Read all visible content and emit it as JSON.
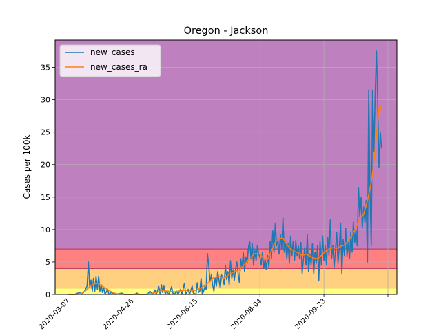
{
  "chart_data": {
    "type": "line",
    "title": "Oregon - Jackson",
    "xlabel": "",
    "ylabel": "Cases per 100k",
    "xlim": [
      "2020-02-26",
      "2020-11-19"
    ],
    "ylim": [
      0,
      39.2
    ],
    "grid": true,
    "legend": "top-left",
    "x_ticks": [
      "2020-03-07",
      "2020-04-26",
      "2020-06-15",
      "2020-08-04",
      "2020-09-23",
      ""
    ],
    "y_ticks": [
      "0",
      "5",
      "10",
      "15",
      "20",
      "25",
      "30",
      "35"
    ],
    "y_tick_values": [
      0,
      5,
      10,
      15,
      20,
      25,
      30,
      35
    ],
    "bands": [
      {
        "from": 0,
        "to": 1,
        "color": "#ffff80"
      },
      {
        "from": 1,
        "to": 4,
        "color": "#ffd080"
      },
      {
        "from": 4,
        "to": 7,
        "color": "#ff8080"
      },
      {
        "from": 7,
        "to": 39.2,
        "color": "#bf80bf"
      }
    ],
    "band_edge_color": "#c04060",
    "series": [
      {
        "name": "new_cases",
        "color": "#1f77b4",
        "points": [
          [
            "2020-03-07",
            0
          ],
          [
            "2020-03-12",
            0
          ],
          [
            "2020-03-16",
            0.3
          ],
          [
            "2020-03-18",
            0
          ],
          [
            "2020-03-20",
            0.5
          ],
          [
            "2020-03-22",
            1.3
          ],
          [
            "2020-03-23",
            5
          ],
          [
            "2020-03-24",
            1
          ],
          [
            "2020-03-25",
            2.2
          ],
          [
            "2020-03-26",
            0.5
          ],
          [
            "2020-03-27",
            2.5
          ],
          [
            "2020-03-28",
            0.5
          ],
          [
            "2020-03-29",
            2.8
          ],
          [
            "2020-03-30",
            0.8
          ],
          [
            "2020-03-31",
            2.8
          ],
          [
            "2020-04-01",
            0.5
          ],
          [
            "2020-04-02",
            1.5
          ],
          [
            "2020-04-03",
            0.3
          ],
          [
            "2020-04-04",
            1
          ],
          [
            "2020-04-05",
            0
          ],
          [
            "2020-04-07",
            0.8
          ],
          [
            "2020-04-08",
            0
          ],
          [
            "2020-04-10",
            0.3
          ],
          [
            "2020-04-13",
            0
          ],
          [
            "2020-04-18",
            0.2
          ],
          [
            "2020-04-20",
            0
          ],
          [
            "2020-04-28",
            0
          ],
          [
            "2020-04-30",
            0.2
          ],
          [
            "2020-05-01",
            0
          ],
          [
            "2020-05-08",
            0
          ],
          [
            "2020-05-10",
            0.5
          ],
          [
            "2020-05-12",
            0
          ],
          [
            "2020-05-14",
            0.7
          ],
          [
            "2020-05-15",
            0
          ],
          [
            "2020-05-17",
            1.2
          ],
          [
            "2020-05-18",
            0
          ],
          [
            "2020-05-19",
            1.5
          ],
          [
            "2020-05-20",
            0.3
          ],
          [
            "2020-05-21",
            1.3
          ],
          [
            "2020-05-22",
            0
          ],
          [
            "2020-05-23",
            0.5
          ],
          [
            "2020-05-25",
            0
          ],
          [
            "2020-05-27",
            1.2
          ],
          [
            "2020-05-28",
            0.2
          ],
          [
            "2020-05-29",
            0
          ],
          [
            "2020-05-31",
            0.5
          ],
          [
            "2020-06-01",
            0
          ],
          [
            "2020-06-03",
            0.8
          ],
          [
            "2020-06-04",
            0
          ],
          [
            "2020-06-06",
            1.7
          ],
          [
            "2020-06-07",
            0
          ],
          [
            "2020-06-09",
            0.8
          ],
          [
            "2020-06-10",
            0
          ],
          [
            "2020-06-12",
            1.3
          ],
          [
            "2020-06-13",
            0.2
          ],
          [
            "2020-06-15",
            0
          ],
          [
            "2020-06-16",
            1.8
          ],
          [
            "2020-06-17",
            0.3
          ],
          [
            "2020-06-18",
            0.5
          ],
          [
            "2020-06-19",
            2.5
          ],
          [
            "2020-06-20",
            0
          ],
          [
            "2020-06-21",
            0.5
          ],
          [
            "2020-06-22",
            1.2
          ],
          [
            "2020-06-23",
            0.8
          ],
          [
            "2020-06-24",
            6.3
          ],
          [
            "2020-06-25",
            4.5
          ],
          [
            "2020-06-26",
            2
          ],
          [
            "2020-06-27",
            3
          ],
          [
            "2020-06-28",
            1.5
          ],
          [
            "2020-06-29",
            0.5
          ],
          [
            "2020-06-30",
            2.5
          ],
          [
            "2020-07-01",
            1.3
          ],
          [
            "2020-07-02",
            3.5
          ],
          [
            "2020-07-03",
            2.2
          ],
          [
            "2020-07-04",
            1
          ],
          [
            "2020-07-05",
            3
          ],
          [
            "2020-07-06",
            2.5
          ],
          [
            "2020-07-07",
            1.5
          ],
          [
            "2020-07-08",
            4.5
          ],
          [
            "2020-07-09",
            2.3
          ],
          [
            "2020-07-10",
            3.5
          ],
          [
            "2020-07-11",
            1.5
          ],
          [
            "2020-07-12",
            5.2
          ],
          [
            "2020-07-13",
            2.5
          ],
          [
            "2020-07-14",
            3.8
          ],
          [
            "2020-07-15",
            2.2
          ],
          [
            "2020-07-16",
            4
          ],
          [
            "2020-07-17",
            5
          ],
          [
            "2020-07-18",
            3.2
          ],
          [
            "2020-07-19",
            1.8
          ],
          [
            "2020-07-20",
            5.5
          ],
          [
            "2020-07-21",
            4.2
          ],
          [
            "2020-07-22",
            6.5
          ],
          [
            "2020-07-23",
            3.5
          ],
          [
            "2020-07-24",
            5.8
          ],
          [
            "2020-07-25",
            4.8
          ],
          [
            "2020-07-26",
            7.2
          ],
          [
            "2020-07-27",
            8.2
          ],
          [
            "2020-07-28",
            5.5
          ],
          [
            "2020-07-29",
            7.8
          ],
          [
            "2020-07-30",
            4.5
          ],
          [
            "2020-07-31",
            6.8
          ],
          [
            "2020-08-01",
            5.2
          ],
          [
            "2020-08-02",
            7.5
          ],
          [
            "2020-08-03",
            6.2
          ],
          [
            "2020-08-04",
            5.8
          ],
          [
            "2020-08-05",
            4.5
          ],
          [
            "2020-08-06",
            6.5
          ],
          [
            "2020-08-07",
            4
          ],
          [
            "2020-08-08",
            5.5
          ],
          [
            "2020-08-09",
            3.8
          ],
          [
            "2020-08-10",
            6
          ],
          [
            "2020-08-11",
            4.2
          ],
          [
            "2020-08-12",
            8.2
          ],
          [
            "2020-08-13",
            5.5
          ],
          [
            "2020-08-14",
            9.8
          ],
          [
            "2020-08-15",
            6.5
          ],
          [
            "2020-08-16",
            11
          ],
          [
            "2020-08-17",
            7.5
          ],
          [
            "2020-08-18",
            8.5
          ],
          [
            "2020-08-19",
            6.2
          ],
          [
            "2020-08-20",
            9.2
          ],
          [
            "2020-08-21",
            7
          ],
          [
            "2020-08-22",
            11.8
          ],
          [
            "2020-08-23",
            6.5
          ],
          [
            "2020-08-24",
            8.2
          ],
          [
            "2020-08-25",
            5.5
          ],
          [
            "2020-08-26",
            7.8
          ],
          [
            "2020-08-27",
            4.8
          ],
          [
            "2020-08-28",
            9
          ],
          [
            "2020-08-29",
            6
          ],
          [
            "2020-08-30",
            8.2
          ],
          [
            "2020-08-31",
            5.2
          ],
          [
            "2020-09-01",
            8.3
          ],
          [
            "2020-09-02",
            6
          ],
          [
            "2020-09-03",
            7.5
          ],
          [
            "2020-09-04",
            5.5
          ],
          [
            "2020-09-05",
            8
          ],
          [
            "2020-09-06",
            3.2
          ],
          [
            "2020-09-07",
            5.5
          ],
          [
            "2020-09-08",
            7.2
          ],
          [
            "2020-09-09",
            4.5
          ],
          [
            "2020-09-10",
            9.2
          ],
          [
            "2020-09-11",
            3.5
          ],
          [
            "2020-09-12",
            6.2
          ],
          [
            "2020-09-13",
            4.5
          ],
          [
            "2020-09-14",
            7.8
          ],
          [
            "2020-09-15",
            3.2
          ],
          [
            "2020-09-16",
            6.5
          ],
          [
            "2020-09-17",
            4.8
          ],
          [
            "2020-09-18",
            7.5
          ],
          [
            "2020-09-19",
            2.2
          ],
          [
            "2020-09-20",
            8.2
          ],
          [
            "2020-09-21",
            4.5
          ],
          [
            "2020-09-22",
            9
          ],
          [
            "2020-09-23",
            5.2
          ],
          [
            "2020-09-24",
            7.5
          ],
          [
            "2020-09-25",
            4.5
          ],
          [
            "2020-09-26",
            8.8
          ],
          [
            "2020-09-27",
            6
          ],
          [
            "2020-09-28",
            11.5
          ],
          [
            "2020-09-29",
            5.5
          ],
          [
            "2020-09-30",
            7.5
          ],
          [
            "2020-10-01",
            4.2
          ],
          [
            "2020-10-02",
            6.8
          ],
          [
            "2020-10-03",
            9.5
          ],
          [
            "2020-10-04",
            4.8
          ],
          [
            "2020-10-05",
            7.2
          ],
          [
            "2020-10-06",
            11
          ],
          [
            "2020-10-07",
            3.2
          ],
          [
            "2020-10-08",
            8.5
          ],
          [
            "2020-10-09",
            6
          ],
          [
            "2020-10-10",
            10.2
          ],
          [
            "2020-10-11",
            5.8
          ],
          [
            "2020-10-12",
            8
          ],
          [
            "2020-10-13",
            5.5
          ],
          [
            "2020-10-14",
            9.5
          ],
          [
            "2020-10-15",
            6.5
          ],
          [
            "2020-10-16",
            11.2
          ],
          [
            "2020-10-17",
            8
          ],
          [
            "2020-10-18",
            10
          ],
          [
            "2020-10-19",
            7.5
          ],
          [
            "2020-10-20",
            16.5
          ],
          [
            "2020-10-21",
            12
          ],
          [
            "2020-10-22",
            15
          ],
          [
            "2020-10-23",
            10.2
          ],
          [
            "2020-10-24",
            13.5
          ],
          [
            "2020-10-25",
            11
          ],
          [
            "2020-10-26",
            14.5
          ],
          [
            "2020-10-27",
            5
          ],
          [
            "2020-10-28",
            31.5
          ],
          [
            "2020-10-29",
            15.5
          ],
          [
            "2020-10-30",
            7.5
          ],
          [
            "2020-10-31",
            31.5
          ],
          [
            "2020-11-01",
            22
          ],
          [
            "2020-11-02",
            30.5
          ],
          [
            "2020-11-03",
            37.5
          ],
          [
            "2020-11-04",
            30
          ],
          [
            "2020-11-05",
            19.5
          ],
          [
            "2020-11-06",
            25
          ],
          [
            "2020-11-07",
            22.5
          ]
        ]
      },
      {
        "name": "new_cases_ra",
        "color": "#ff7f0e",
        "points": [
          [
            "2020-03-07",
            0
          ],
          [
            "2020-03-14",
            0
          ],
          [
            "2020-03-18",
            0.2
          ],
          [
            "2020-03-21",
            0.6
          ],
          [
            "2020-03-24",
            1.2
          ],
          [
            "2020-03-27",
            1.6
          ],
          [
            "2020-03-30",
            1.7
          ],
          [
            "2020-04-02",
            1.4
          ],
          [
            "2020-04-05",
            1
          ],
          [
            "2020-04-08",
            0.6
          ],
          [
            "2020-04-11",
            0.3
          ],
          [
            "2020-04-14",
            0.1
          ],
          [
            "2020-04-20",
            0
          ],
          [
            "2020-05-05",
            0
          ],
          [
            "2020-05-10",
            0.1
          ],
          [
            "2020-05-15",
            0.3
          ],
          [
            "2020-05-20",
            0.6
          ],
          [
            "2020-05-25",
            0.5
          ],
          [
            "2020-05-30",
            0.4
          ],
          [
            "2020-06-04",
            0.6
          ],
          [
            "2020-06-09",
            0.7
          ],
          [
            "2020-06-14",
            0.6
          ],
          [
            "2020-06-19",
            1
          ],
          [
            "2020-06-24",
            1.7
          ],
          [
            "2020-06-29",
            2.6
          ],
          [
            "2020-07-03",
            2.8
          ],
          [
            "2020-07-07",
            2.5
          ],
          [
            "2020-07-11",
            3.1
          ],
          [
            "2020-07-15",
            3.5
          ],
          [
            "2020-07-19",
            3.8
          ],
          [
            "2020-07-23",
            4.6
          ],
          [
            "2020-07-27",
            5.6
          ],
          [
            "2020-07-31",
            6.3
          ],
          [
            "2020-08-04",
            6.2
          ],
          [
            "2020-08-07",
            5.5
          ],
          [
            "2020-08-10",
            5.4
          ],
          [
            "2020-08-13",
            6.7
          ],
          [
            "2020-08-16",
            8
          ],
          [
            "2020-08-19",
            8.6
          ],
          [
            "2020-08-22",
            8.7
          ],
          [
            "2020-08-25",
            7.7
          ],
          [
            "2020-08-28",
            7
          ],
          [
            "2020-08-31",
            6.6
          ],
          [
            "2020-09-03",
            6.4
          ],
          [
            "2020-09-06",
            6
          ],
          [
            "2020-09-09",
            6.2
          ],
          [
            "2020-09-12",
            5.9
          ],
          [
            "2020-09-15",
            5.6
          ],
          [
            "2020-09-18",
            5.5
          ],
          [
            "2020-09-21",
            6
          ],
          [
            "2020-09-24",
            6.6
          ],
          [
            "2020-09-27",
            7
          ],
          [
            "2020-09-30",
            7.2
          ],
          [
            "2020-10-03",
            7.1
          ],
          [
            "2020-10-06",
            7.4
          ],
          [
            "2020-10-09",
            7.6
          ],
          [
            "2020-10-12",
            8.2
          ],
          [
            "2020-10-15",
            9.2
          ],
          [
            "2020-10-18",
            10.2
          ],
          [
            "2020-10-21",
            11.8
          ],
          [
            "2020-10-24",
            12.3
          ],
          [
            "2020-10-27",
            14.5
          ],
          [
            "2020-10-30",
            17.2
          ],
          [
            "2020-11-01",
            20.5
          ],
          [
            "2020-11-03",
            24.5
          ],
          [
            "2020-11-05",
            28.8
          ],
          [
            "2020-11-06",
            29
          ],
          [
            "2020-11-07",
            28.3
          ]
        ]
      }
    ]
  }
}
